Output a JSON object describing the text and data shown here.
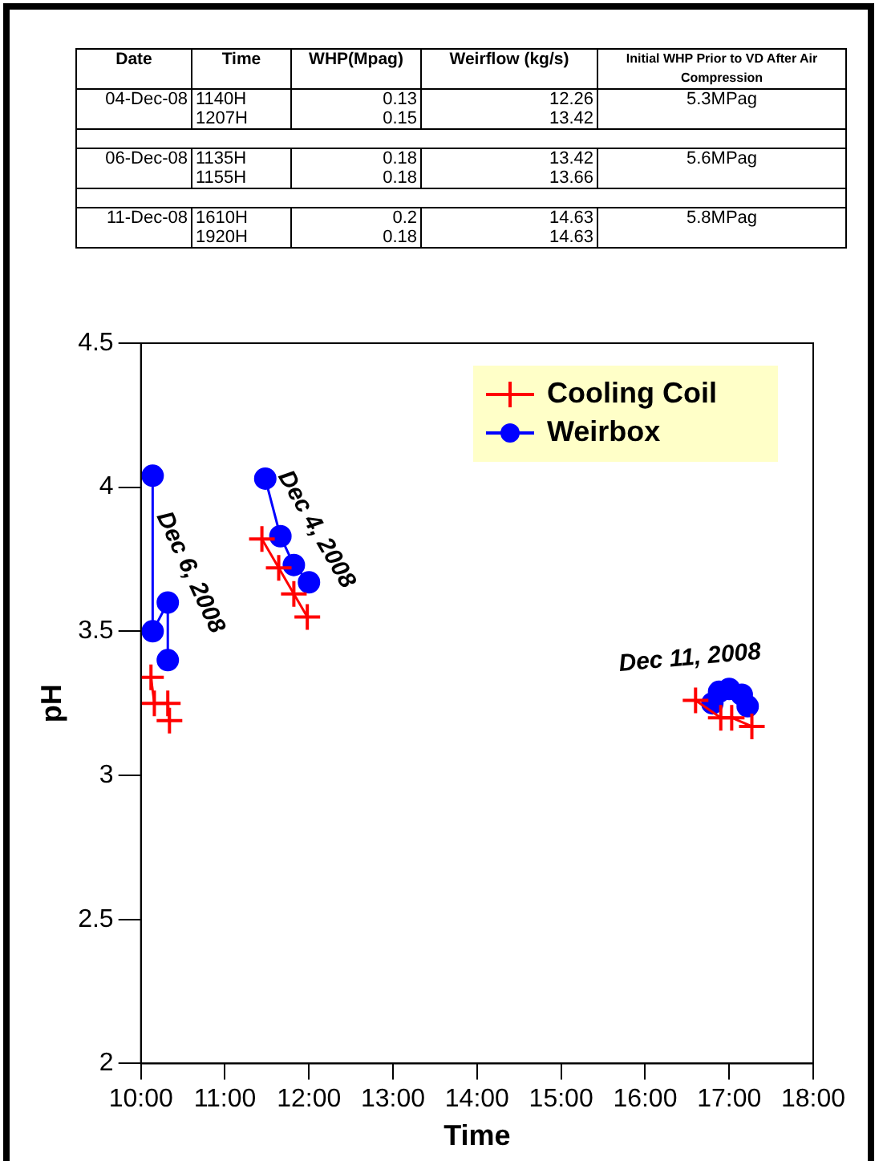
{
  "chart_data": [
    {
      "type": "other",
      "annotations": [
        "Date",
        "Time",
        "WHP(Mpag)",
        "Weirflow (kg/s)",
        "Initial WHP Prior to VD After Air Compression",
        "04-Dec-08",
        "1140H",
        "0.13",
        "12.26",
        "5.3MPag",
        null,
        "1207H",
        "0.15",
        "13.42",
        null,
        null,
        null,
        null,
        null,
        null,
        "06-Dec-08",
        "1135H",
        "0.18",
        "13.42",
        "5.6MPag",
        null,
        "1155H",
        "0.18",
        "13.66",
        null,
        null,
        null,
        null,
        null,
        null,
        "11-Dec-08",
        "1610H",
        "0.2",
        "14.63",
        "5.8MPag",
        null,
        "1920H",
        "0.18",
        "14.63",
        null
      ]
    },
    {
      "type": "line",
      "xlabel": "Time",
      "ylabel": "pH",
      "legend": "top right",
      "grid": false,
      "xlim": [
        10,
        18
      ],
      "ylim": [
        2,
        4.5
      ],
      "yticks": [
        2,
        2.5,
        3,
        3.5,
        4,
        4.5
      ],
      "xticks": [
        {
          "value": 10,
          "label": "10:00"
        },
        {
          "value": 11,
          "label": "11:00"
        },
        {
          "value": 12,
          "label": "12:00"
        },
        {
          "value": 13,
          "label": "13:00"
        },
        {
          "value": 14,
          "label": "14:00"
        },
        {
          "value": 15,
          "label": "15:00"
        },
        {
          "value": 16,
          "label": "16:00"
        },
        {
          "value": 17,
          "label": "17:00"
        },
        {
          "value": 18,
          "label": "18:00"
        }
      ],
      "series": [
        {
          "name": "Cooling Coil",
          "color": "#ff0000",
          "type": "line",
          "marker": "cross",
          "x": [
            10.12,
            10.16,
            10.32,
            10.34,
            11,
            11.44,
            11.64,
            11.82,
            11.98,
            14,
            16.6,
            16.9,
            17.03,
            17.27
          ],
          "values": [
            3.34,
            3.25,
            3.25,
            3.19,
            null,
            3.82,
            3.72,
            3.63,
            3.55,
            null,
            3.26,
            3.2,
            3.2,
            3.17
          ]
        },
        {
          "name": "Weirbox",
          "color": "#0000ff",
          "type": "line",
          "marker": "circle",
          "x": [
            10.14,
            10.14,
            10.32,
            10.32,
            11,
            11.48,
            11.66,
            11.82,
            12,
            14,
            16.8,
            16.88,
            17,
            17.15,
            17.22
          ],
          "values": [
            4.04,
            3.5,
            3.6,
            3.4,
            null,
            4.03,
            3.83,
            3.73,
            3.67,
            null,
            3.25,
            3.29,
            3.3,
            3.28,
            3.24
          ]
        }
      ],
      "annotations": [
        "Dec 6, 2008",
        "Dec 4, 2008",
        "Dec 11, 2008"
      ]
    }
  ]
}
